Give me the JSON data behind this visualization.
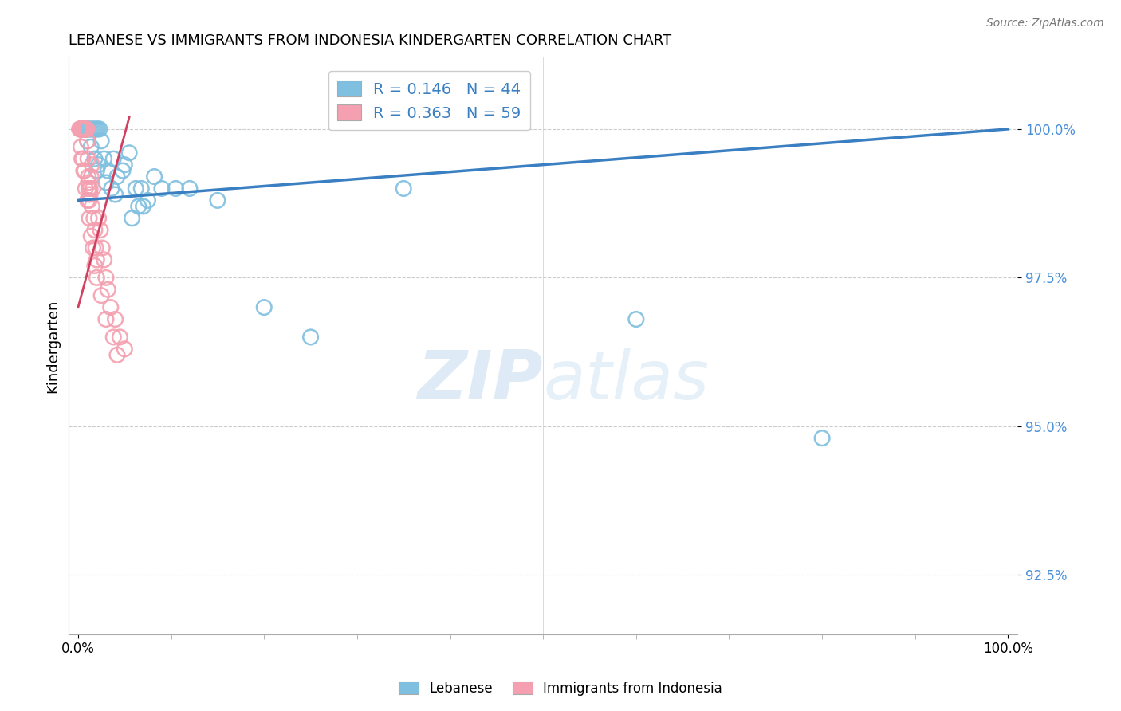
{
  "title": "LEBANESE VS IMMIGRANTS FROM INDONESIA KINDERGARTEN CORRELATION CHART",
  "source": "Source: ZipAtlas.com",
  "ylabel": "Kindergarten",
  "xlim": [
    -1,
    101
  ],
  "ylim": [
    91.5,
    101.2
  ],
  "yticks": [
    92.5,
    95.0,
    97.5,
    100.0
  ],
  "ytick_labels": [
    "92.5%",
    "95.0%",
    "97.5%",
    "100.0%"
  ],
  "legend_blue_R": "R = 0.146",
  "legend_blue_N": "N = 44",
  "legend_pink_R": "R = 0.363",
  "legend_pink_N": "N = 59",
  "blue_color": "#7fbfdf",
  "pink_color": "#f4a0b0",
  "trend_blue_color": "#3a7fc1",
  "trend_pink_color": "#d04060",
  "tick_label_color": "#4a90d9",
  "watermark_color": "#daeef8",
  "blue_x": [
    0.3,
    0.5,
    0.7,
    0.9,
    1.1,
    1.3,
    1.5,
    1.7,
    1.9,
    2.1,
    2.3,
    2.5,
    2.8,
    3.2,
    3.6,
    4.2,
    5.0,
    5.5,
    6.2,
    6.8,
    7.5,
    9.0,
    10.5,
    12.0,
    3.8,
    4.8,
    6.5,
    8.2,
    2.0,
    1.8,
    1.0,
    0.8,
    1.4,
    2.2,
    3.0,
    4.0,
    5.8,
    7.0,
    15.0,
    20.0,
    25.0,
    35.0,
    60.0,
    80.0
  ],
  "blue_y": [
    100.0,
    100.0,
    100.0,
    100.0,
    100.0,
    100.0,
    100.0,
    100.0,
    100.0,
    100.0,
    100.0,
    99.8,
    99.5,
    99.3,
    99.0,
    99.2,
    99.4,
    99.6,
    99.0,
    99.0,
    98.8,
    99.0,
    99.0,
    99.0,
    99.5,
    99.3,
    98.7,
    99.2,
    99.3,
    99.5,
    99.8,
    100.0,
    99.7,
    99.4,
    99.1,
    98.9,
    98.5,
    98.7,
    98.8,
    97.0,
    96.5,
    99.0,
    96.8,
    94.8
  ],
  "pink_x": [
    0.15,
    0.2,
    0.25,
    0.3,
    0.35,
    0.4,
    0.45,
    0.5,
    0.55,
    0.6,
    0.65,
    0.7,
    0.75,
    0.8,
    0.85,
    0.9,
    0.95,
    1.0,
    1.05,
    1.1,
    1.15,
    1.2,
    1.3,
    1.4,
    1.5,
    1.6,
    1.7,
    1.8,
    1.9,
    2.0,
    2.2,
    2.4,
    2.6,
    2.8,
    3.0,
    3.2,
    3.5,
    4.0,
    4.5,
    5.0,
    0.4,
    0.6,
    0.8,
    1.0,
    1.2,
    1.4,
    1.6,
    1.8,
    2.0,
    2.5,
    3.0,
    3.8,
    4.2,
    0.3,
    0.5,
    0.7,
    1.1,
    1.3,
    1.5
  ],
  "pink_y": [
    100.0,
    100.0,
    100.0,
    100.0,
    100.0,
    100.0,
    100.0,
    100.0,
    100.0,
    100.0,
    100.0,
    100.0,
    100.0,
    100.0,
    100.0,
    100.0,
    100.0,
    99.8,
    99.5,
    99.2,
    99.0,
    98.8,
    99.0,
    99.2,
    99.4,
    99.0,
    98.5,
    98.3,
    98.0,
    97.8,
    98.5,
    98.3,
    98.0,
    97.8,
    97.5,
    97.3,
    97.0,
    96.8,
    96.5,
    96.3,
    99.5,
    99.3,
    99.0,
    98.8,
    98.5,
    98.2,
    98.0,
    97.7,
    97.5,
    97.2,
    96.8,
    96.5,
    96.2,
    99.7,
    99.5,
    99.3,
    99.1,
    98.9,
    98.7
  ],
  "blue_trend_x0": 0,
  "blue_trend_y0": 98.8,
  "blue_trend_x1": 100,
  "blue_trend_y1": 100.0,
  "pink_trend_x0": 0,
  "pink_trend_y0": 97.0,
  "pink_trend_x1": 5.5,
  "pink_trend_y1": 100.2
}
